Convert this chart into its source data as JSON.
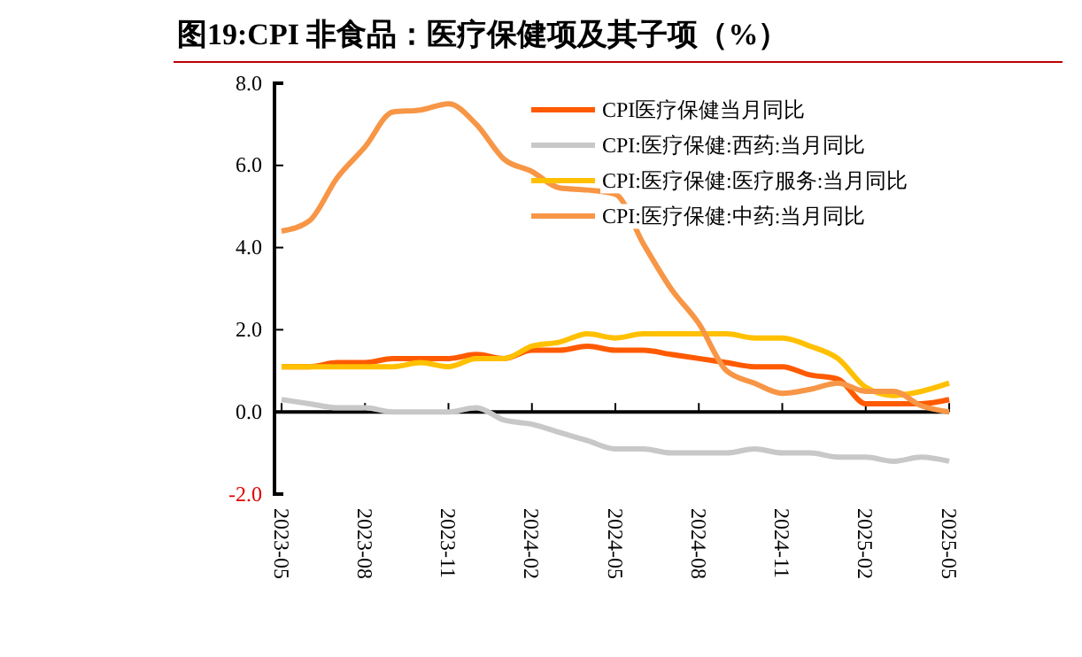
{
  "chart_data": {
    "type": "line",
    "title": "图19:CPI 非食品：医疗保健项及其子项（%）",
    "categories": [
      "2023-05",
      null,
      null,
      "2023-08",
      null,
      null,
      "2023-11",
      null,
      null,
      "2024-02",
      null,
      null,
      "2024-05",
      null,
      null,
      "2024-08",
      null,
      null,
      "2024-11",
      null,
      null,
      "2025-02",
      null,
      null,
      "2025-05"
    ],
    "series": [
      {
        "name": "CPI医疗保健当月同比",
        "color": "#ff5a00",
        "values": [
          1.1,
          1.1,
          1.2,
          1.2,
          1.3,
          1.3,
          1.3,
          1.4,
          1.3,
          1.5,
          1.5,
          1.6,
          1.5,
          1.5,
          1.4,
          1.3,
          1.2,
          1.1,
          1.1,
          0.9,
          0.8,
          0.2,
          0.2,
          0.2,
          0.3
        ]
      },
      {
        "name": "CPI:医疗保健:西药:当月同比",
        "color": "#c8c8c8",
        "values": [
          0.3,
          0.2,
          0.1,
          0.1,
          0.0,
          0.0,
          0.0,
          0.1,
          -0.2,
          -0.3,
          -0.5,
          -0.7,
          -0.9,
          -0.9,
          -1.0,
          -1.0,
          -1.0,
          -0.9,
          -1.0,
          -1.0,
          -1.1,
          -1.1,
          -1.2,
          -1.1,
          -1.2
        ]
      },
      {
        "name": "CPI:医疗保健:医疗服务:当月同比",
        "color": "#ffc000",
        "values": [
          1.1,
          1.1,
          1.1,
          1.1,
          1.1,
          1.2,
          1.1,
          1.3,
          1.3,
          1.6,
          1.7,
          1.9,
          1.8,
          1.9,
          1.9,
          1.9,
          1.9,
          1.8,
          1.8,
          1.6,
          1.3,
          0.6,
          0.4,
          0.5,
          0.7
        ]
      },
      {
        "name": "CPI:医疗保健:中药:当月同比",
        "color": "#f79646",
        "values": [
          4.4,
          4.65,
          5.7,
          6.45,
          7.3,
          7.35,
          7.5,
          7.0,
          6.15,
          5.85,
          5.45,
          5.4,
          5.3,
          4.1,
          3.0,
          2.15,
          1.0,
          0.7,
          0.45,
          0.55,
          0.7,
          0.5,
          0.5,
          0.15,
          0.0
        ]
      }
    ],
    "ylim": [
      -2,
      8
    ],
    "yticks": [
      {
        "value": -2,
        "label": "-2.0"
      },
      {
        "value": 0,
        "label": "0.0"
      },
      {
        "value": 2,
        "label": "2.0"
      },
      {
        "value": 4,
        "label": "4.0"
      },
      {
        "value": 6,
        "label": "6.0"
      },
      {
        "value": 8,
        "label": "8.0"
      }
    ],
    "legend": "top right",
    "marker": "none",
    "line_style": "solid"
  }
}
